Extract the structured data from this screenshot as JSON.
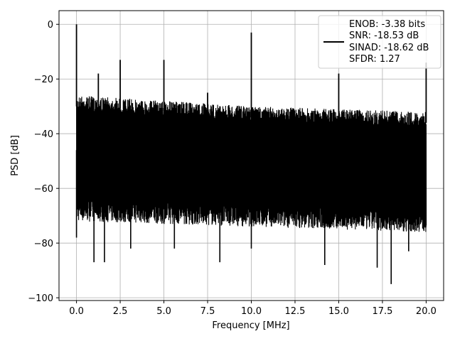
{
  "chart_data": {
    "type": "line",
    "xlabel": "Frequency [MHz]",
    "ylabel": "PSD [dB]",
    "xlim": [
      -1.0,
      21.0
    ],
    "ylim": [
      -101.0,
      5.0
    ],
    "xticks": [
      0.0,
      2.5,
      5.0,
      7.5,
      10.0,
      12.5,
      15.0,
      17.5,
      20.0
    ],
    "xtick_labels": [
      "0.0",
      "2.5",
      "5.0",
      "7.5",
      "10.0",
      "12.5",
      "15.0",
      "17.5",
      "20.0"
    ],
    "yticks": [
      0,
      -20,
      -40,
      -60,
      -80,
      -100
    ],
    "ytick_labels": [
      "0",
      "−20",
      "−40",
      "−60",
      "−80",
      "−100"
    ],
    "grid": true,
    "line_color": "#000000",
    "legend_position": "top-right",
    "legend_lines": [
      "ENOB: -3.38 bits",
      "SNR: -18.53 dB",
      "SINAD: -18.62 dB",
      "SFDR: 1.27"
    ],
    "noise_floor": {
      "x_range": [
        0.0,
        20.0
      ],
      "upper_envelope": [
        [
          0.0,
          -26
        ],
        [
          5.0,
          -28
        ],
        [
          10.0,
          -30
        ],
        [
          15.0,
          -31
        ],
        [
          20.0,
          -32
        ]
      ],
      "lower_envelope": [
        [
          0.0,
          -72
        ],
        [
          5.0,
          -73
        ],
        [
          10.0,
          -74
        ],
        [
          15.0,
          -75
        ],
        [
          20.0,
          -76
        ]
      ]
    },
    "deep_dips": [
      {
        "x": 0.0,
        "y": -78
      },
      {
        "x": 1.0,
        "y": -87
      },
      {
        "x": 1.6,
        "y": -87
      },
      {
        "x": 3.1,
        "y": -82
      },
      {
        "x": 5.6,
        "y": -82
      },
      {
        "x": 8.2,
        "y": -87
      },
      {
        "x": 10.0,
        "y": -82
      },
      {
        "x": 14.2,
        "y": -88
      },
      {
        "x": 17.2,
        "y": -89
      },
      {
        "x": 18.0,
        "y": -95
      },
      {
        "x": 19.0,
        "y": -83
      }
    ],
    "spurs": [
      {
        "x": 0.0,
        "y": 0
      },
      {
        "x": 1.25,
        "y": -18
      },
      {
        "x": 2.5,
        "y": -13
      },
      {
        "x": 5.0,
        "y": -13
      },
      {
        "x": 7.5,
        "y": -25
      },
      {
        "x": 10.0,
        "y": -3
      },
      {
        "x": 15.0,
        "y": -18
      },
      {
        "x": 20.0,
        "y": -14
      }
    ]
  }
}
